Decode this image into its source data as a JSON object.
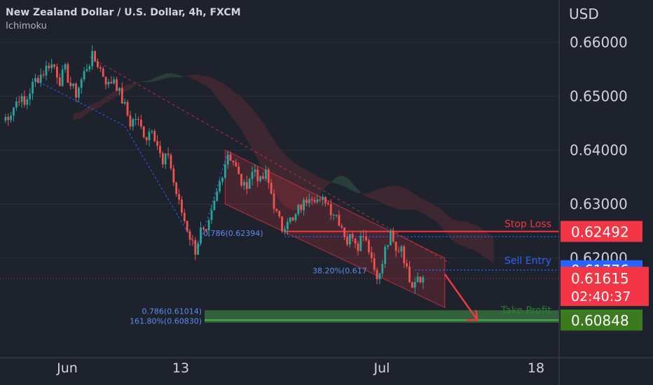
{
  "header": {
    "title": "New Zealand Dollar / U.S. Dollar, 4h, FXCM",
    "indicator": "Ichimoku",
    "currency": "USD"
  },
  "colors": {
    "background": "#1e222d",
    "up_candle": "#26a69a",
    "down_candle": "#ef5350",
    "stop_loss": "#f23645",
    "sell_entry": "#2962ff",
    "take_profit": "#4caf50",
    "cloud_bull": "#2e4a3f",
    "cloud_bear": "#4a2a32"
  },
  "chart_data": {
    "type": "candlestick",
    "symbol": "New Zealand Dollar / U.S. Dollar",
    "timeframe": "4h",
    "source": "FXCM",
    "y_ticks": [
      0.66,
      0.65,
      0.64,
      0.63,
      0.62
    ],
    "y_tick_labels": [
      "0.66000",
      "0.65000",
      "0.64000",
      "0.63000",
      "0.62000"
    ],
    "ylim": [
      0.6015,
      0.6668
    ],
    "x_ticks": [
      "Jun",
      "13",
      "Jul",
      "18"
    ],
    "price_path": [
      [
        0,
        0.6455
      ],
      [
        3,
        0.647
      ],
      [
        6,
        0.65
      ],
      [
        8,
        0.6482
      ],
      [
        10,
        0.651
      ],
      [
        12,
        0.653
      ],
      [
        15,
        0.6545
      ],
      [
        17,
        0.656
      ],
      [
        19,
        0.6555
      ],
      [
        21,
        0.653
      ],
      [
        23,
        0.6548
      ],
      [
        25,
        0.652
      ],
      [
        27,
        0.6505
      ],
      [
        29,
        0.653
      ],
      [
        31,
        0.6555
      ],
      [
        33,
        0.6572
      ],
      [
        35,
        0.656
      ],
      [
        37,
        0.654
      ],
      [
        39,
        0.652
      ],
      [
        41,
        0.6535
      ],
      [
        43,
        0.6505
      ],
      [
        45,
        0.648
      ],
      [
        47,
        0.645
      ],
      [
        49,
        0.646
      ],
      [
        51,
        0.644
      ],
      [
        53,
        0.6425
      ],
      [
        55,
        0.6445
      ],
      [
        57,
        0.641
      ],
      [
        59,
        0.637
      ],
      [
        61,
        0.6395
      ],
      [
        63,
        0.634
      ],
      [
        65,
        0.63
      ],
      [
        67,
        0.627
      ],
      [
        69,
        0.624
      ],
      [
        71,
        0.6215
      ],
      [
        73,
        0.625
      ],
      [
        75,
        0.624
      ],
      [
        77,
        0.628
      ],
      [
        79,
        0.632
      ],
      [
        81,
        0.636
      ],
      [
        83,
        0.6395
      ],
      [
        85,
        0.638
      ],
      [
        87,
        0.635
      ],
      [
        89,
        0.633
      ],
      [
        91,
        0.635
      ],
      [
        93,
        0.6365
      ],
      [
        95,
        0.634
      ],
      [
        97,
        0.6355
      ],
      [
        99,
        0.632
      ],
      [
        101,
        0.628
      ],
      [
        103,
        0.6255
      ],
      [
        105,
        0.6275
      ],
      [
        107,
        0.6265
      ],
      [
        109,
        0.629
      ],
      [
        111,
        0.63
      ],
      [
        113,
        0.632
      ],
      [
        115,
        0.6315
      ],
      [
        117,
        0.63
      ],
      [
        119,
        0.631
      ],
      [
        121,
        0.629
      ],
      [
        123,
        0.628
      ],
      [
        125,
        0.626
      ],
      [
        127,
        0.623
      ],
      [
        129,
        0.6245
      ],
      [
        131,
        0.6225
      ],
      [
        133,
        0.625
      ],
      [
        135,
        0.622
      ],
      [
        137,
        0.618
      ],
      [
        139,
        0.6165
      ],
      [
        141,
        0.6215
      ],
      [
        143,
        0.624
      ],
      [
        145,
        0.621
      ],
      [
        147,
        0.6225
      ],
      [
        149,
        0.6175
      ],
      [
        151,
        0.6155
      ],
      [
        153,
        0.617
      ],
      [
        155,
        0.6162
      ]
    ],
    "levels": [
      {
        "name": "Stop Loss",
        "label": "0.62492",
        "value": 0.62492,
        "color": "#f23645"
      },
      {
        "name": "Sell Entry",
        "label": "0.61776",
        "value": 0.61776,
        "color": "#2962ff"
      },
      {
        "name": "Take Profit",
        "label": "0.60848",
        "value": 0.60848,
        "color": "#4caf50"
      }
    ],
    "current_price": {
      "label": "0.61615",
      "value": 0.61615,
      "countdown": "02:40:37",
      "color": "#f23645"
    },
    "fib_labels": [
      {
        "text": "0.786(0.62394)",
        "value": 0.62394
      },
      {
        "text": "38.20%(0.617",
        "value": 0.6174
      },
      {
        "text": "0.786(0.61014)",
        "value": 0.61014
      },
      {
        "text": "161.80%(0.60830)",
        "value": 0.6083
      }
    ],
    "annotations": [
      "Stop Loss",
      "Sell Entry",
      "Take Profit"
    ]
  }
}
